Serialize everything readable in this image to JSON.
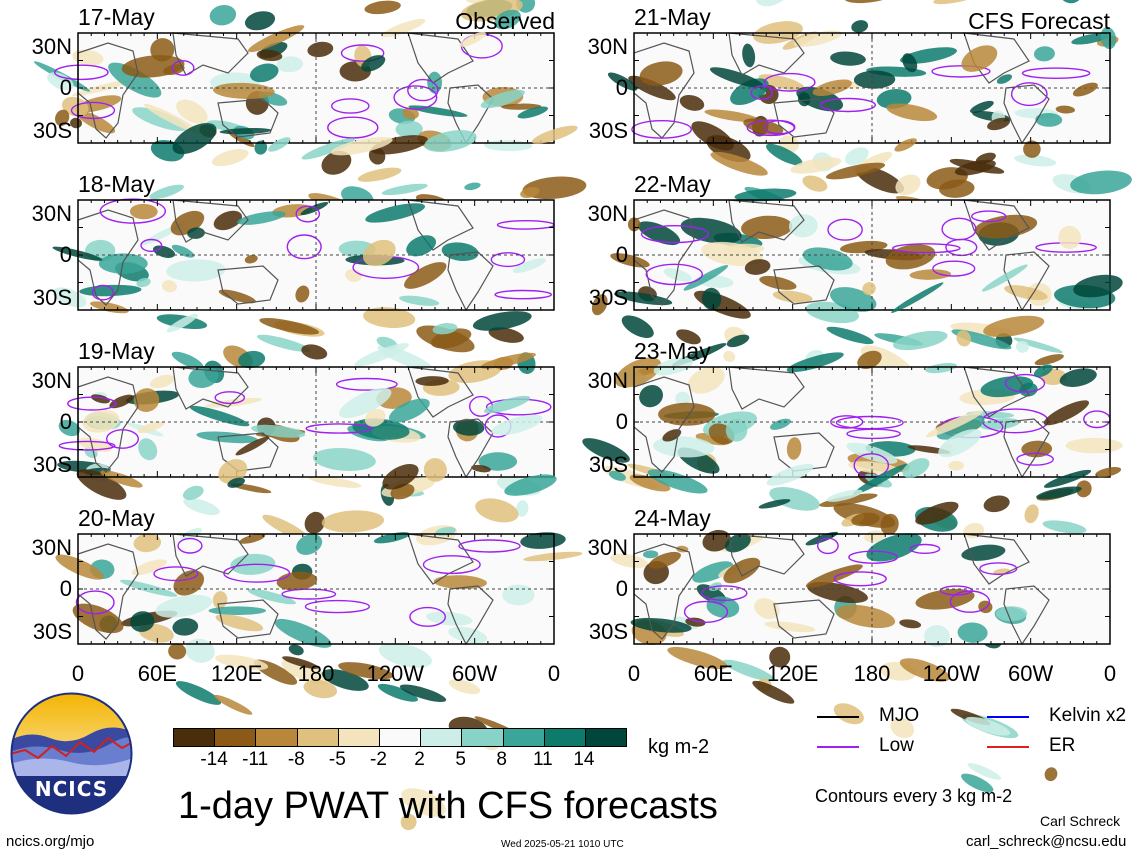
{
  "header": {
    "observed_label": "Observed",
    "forecast_label": "CFS Forecast"
  },
  "panels": [
    {
      "date": "17-May",
      "column": "observed"
    },
    {
      "date": "18-May",
      "column": "observed"
    },
    {
      "date": "19-May",
      "column": "observed"
    },
    {
      "date": "20-May",
      "column": "observed"
    },
    {
      "date": "21-May",
      "column": "forecast"
    },
    {
      "date": "22-May",
      "column": "forecast"
    },
    {
      "date": "23-May",
      "column": "forecast"
    },
    {
      "date": "24-May",
      "column": "forecast"
    }
  ],
  "lat_ticks": [
    "30N",
    "0",
    "30S"
  ],
  "lon_ticks": [
    "0",
    "60E",
    "120E",
    "180",
    "120W",
    "60W",
    "0"
  ],
  "colorbar": {
    "colors": [
      "#4a2d0a",
      "#8b5a16",
      "#b9873a",
      "#dfc07c",
      "#f3e4bd",
      "#fafafa",
      "#cdeee8",
      "#88d3c7",
      "#3aa598",
      "#0d7a6c",
      "#00463b"
    ],
    "labels": [
      "-14",
      "-11",
      "-8",
      "-5",
      "-2",
      "2",
      "5",
      "8",
      "11",
      "14"
    ],
    "units": "kg m-2"
  },
  "legend": {
    "items": [
      {
        "name": "MJO",
        "color": "#000000"
      },
      {
        "name": "Kelvin x2",
        "color": "#0000ff"
      },
      {
        "name": "Low",
        "color": "#a020f0"
      },
      {
        "name": "ER",
        "color": "#e02020"
      }
    ],
    "note": "Contours every 3 kg m-2"
  },
  "title": "1-day PWAT with CFS forecasts",
  "logo_text": "NCICS",
  "footer": {
    "url": "ncics.org/mjo",
    "timestamp": "Wed 2025-05-21 1010 UTC",
    "author": "Carl Schreck",
    "email": "carl_schreck@ncsu.edu"
  },
  "chart_data": {
    "type": "heatmap",
    "title": "1-day PWAT with CFS forecasts",
    "variable": "Precipitable water anomaly",
    "units": "kg m-2",
    "x_ticks": [
      "0",
      "60E",
      "120E",
      "180",
      "120W",
      "60W",
      "0"
    ],
    "y_ticks": [
      "30N",
      "0",
      "30S"
    ],
    "color_levels": [
      -14,
      -11,
      -8,
      -5,
      -2,
      2,
      5,
      8,
      11,
      14
    ],
    "contour_interval": 3,
    "observed_dates": [
      "17-May",
      "18-May",
      "19-May",
      "20-May"
    ],
    "forecast_dates": [
      "21-May",
      "22-May",
      "23-May",
      "24-May"
    ],
    "overlay_legend": [
      "MJO",
      "Kelvin x2",
      "Low",
      "ER"
    ]
  }
}
